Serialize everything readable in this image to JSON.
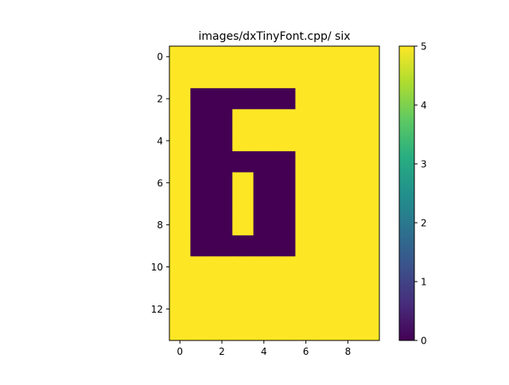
{
  "chart_data": {
    "type": "heatmap",
    "title": "images/dxTinyFont.cpp/ six",
    "rows": 14,
    "cols": 10,
    "xticks": [
      0,
      2,
      4,
      6,
      8
    ],
    "yticks": [
      0,
      2,
      4,
      6,
      8,
      10,
      12
    ],
    "colorbar": {
      "min": 0,
      "max": 5,
      "ticks": [
        0,
        1,
        2,
        3,
        4,
        5
      ],
      "colormap": "viridis"
    },
    "colors": {
      "low": "#440154",
      "high": "#fde725"
    },
    "values": [
      [
        5,
        5,
        5,
        5,
        5,
        5,
        5,
        5,
        5,
        5
      ],
      [
        5,
        5,
        5,
        5,
        5,
        5,
        5,
        5,
        5,
        5
      ],
      [
        5,
        0,
        0,
        0,
        0,
        0,
        5,
        5,
        5,
        5
      ],
      [
        5,
        0,
        0,
        5,
        5,
        5,
        5,
        5,
        5,
        5
      ],
      [
        5,
        0,
        0,
        5,
        5,
        5,
        5,
        5,
        5,
        5
      ],
      [
        5,
        0,
        0,
        0,
        0,
        0,
        5,
        5,
        5,
        5
      ],
      [
        5,
        0,
        0,
        5,
        0,
        0,
        5,
        5,
        5,
        5
      ],
      [
        5,
        0,
        0,
        5,
        0,
        0,
        5,
        5,
        5,
        5
      ],
      [
        5,
        0,
        0,
        5,
        0,
        0,
        5,
        5,
        5,
        5
      ],
      [
        5,
        0,
        0,
        0,
        0,
        0,
        5,
        5,
        5,
        5
      ],
      [
        5,
        5,
        5,
        5,
        5,
        5,
        5,
        5,
        5,
        5
      ],
      [
        5,
        5,
        5,
        5,
        5,
        5,
        5,
        5,
        5,
        5
      ],
      [
        5,
        5,
        5,
        5,
        5,
        5,
        5,
        5,
        5,
        5
      ],
      [
        5,
        5,
        5,
        5,
        5,
        5,
        5,
        5,
        5,
        5
      ]
    ]
  }
}
